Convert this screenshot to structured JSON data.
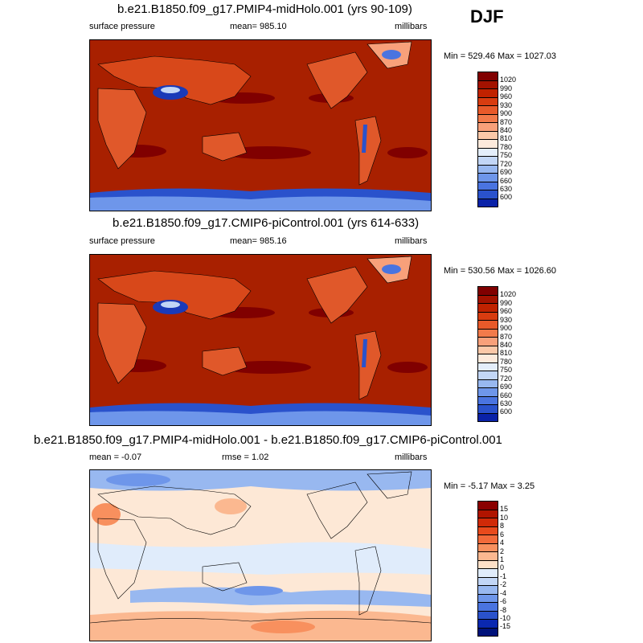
{
  "season": "DJF",
  "panels": [
    {
      "title": "b.e21.B1850.f09_g17.PMIP4-midHolo.001 (yrs 90-109)",
      "left_label": "surface pressure",
      "center_label": "mean= 985.10",
      "right_label": "millibars",
      "minmax": "Min = 529.46 Max = 1027.03"
    },
    {
      "title": "b.e21.B1850.f09_g17.CMIP6-piControl.001 (yrs 614-633)",
      "left_label": "surface pressure",
      "center_label": "mean= 985.16",
      "right_label": "millibars",
      "minmax": "Min = 530.56 Max = 1026.60"
    },
    {
      "title": "b.e21.B1850.f09_g17.PMIP4-midHolo.001 - b.e21.B1850.f09_g17.CMIP6-piControl.001",
      "left_label": "mean =  -0.07",
      "center_label": "rmse =   1.02",
      "right_label": "millibars",
      "minmax": "Min =  -5.17 Max =   3.25"
    }
  ],
  "colorbars": {
    "absolute": {
      "labels": [
        "1020",
        "990",
        "960",
        "930",
        "900",
        "870",
        "840",
        "810",
        "780",
        "750",
        "720",
        "690",
        "660",
        "630",
        "600"
      ],
      "colors": [
        "#800000",
        "#a31200",
        "#c02200",
        "#d83c10",
        "#e85a2a",
        "#f27a4a",
        "#f8a07a",
        "#fbc8a8",
        "#fdeadc",
        "#e4eefb",
        "#c2d6f6",
        "#98b8f0",
        "#6e96ea",
        "#4a74e0",
        "#2a52cc",
        "#0a22a8"
      ]
    },
    "difference": {
      "labels": [
        "15",
        "10",
        "8",
        "6",
        "4",
        "2",
        "1",
        "0",
        "-1",
        "-2",
        "-4",
        "-6",
        "-8",
        "-10",
        "-15"
      ],
      "colors": [
        "#8a0000",
        "#b01400",
        "#d02a08",
        "#e84a1c",
        "#f26a3a",
        "#f8905e",
        "#fbb890",
        "#fde0c8",
        "#e0ecfb",
        "#c2d6f6",
        "#98b8f0",
        "#6e96ea",
        "#4a74e0",
        "#2a52cc",
        "#0a28b0",
        "#00127a"
      ]
    }
  },
  "colors": {
    "ocean_abs": "#a82000",
    "ocean_diff": "#fde8d6"
  }
}
